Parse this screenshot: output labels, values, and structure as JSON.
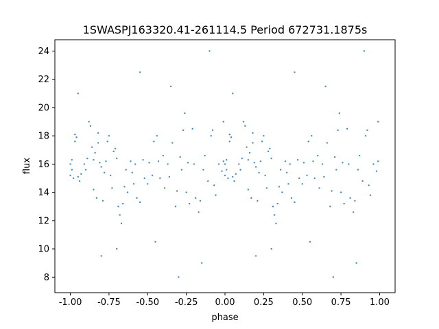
{
  "chart_data": {
    "type": "scatter",
    "title": "1SWASPJ163320.41-261114.5 Period 672731.1875s",
    "xlabel": "phase",
    "ylabel": "flux",
    "xlim": [
      -1.1,
      1.1
    ],
    "ylim": [
      6.9,
      24.8
    ],
    "xticks": [
      "-1.00",
      "-0.75",
      "-0.50",
      "-0.25",
      "0.00",
      "0.25",
      "0.50",
      "0.75",
      "1.00"
    ],
    "xtick_values": [
      -1,
      -0.75,
      -0.5,
      -0.25,
      0,
      0.25,
      0.5,
      0.75,
      1
    ],
    "yticks": [
      "8",
      "10",
      "12",
      "14",
      "16",
      "18",
      "20",
      "22",
      "24"
    ],
    "ytick_values": [
      8,
      10,
      12,
      14,
      16,
      18,
      20,
      22,
      24
    ],
    "grid": false,
    "marker_color": "#1f77b4",
    "points": [
      [
        0.0,
        15.2
      ],
      [
        0.0,
        16.0
      ],
      [
        0.01,
        15.6
      ],
      [
        0.01,
        16.3
      ],
      [
        0.02,
        15.0
      ],
      [
        0.03,
        17.6
      ],
      [
        0.03,
        18.1
      ],
      [
        0.04,
        17.9
      ],
      [
        0.05,
        15.1
      ],
      [
        0.06,
        14.8
      ],
      [
        0.07,
        15.3
      ],
      [
        0.09,
        16.0
      ],
      [
        0.1,
        15.6
      ],
      [
        0.11,
        16.4
      ],
      [
        0.12,
        19.0
      ],
      [
        0.13,
        18.7
      ],
      [
        0.14,
        17.2
      ],
      [
        0.15,
        16.3
      ],
      [
        0.15,
        14.2
      ],
      [
        0.16,
        16.8
      ],
      [
        0.17,
        13.6
      ],
      [
        0.18,
        18.2
      ],
      [
        0.18,
        17.5
      ],
      [
        0.19,
        16.1
      ],
      [
        0.2,
        15.8
      ],
      [
        0.21,
        13.4
      ],
      [
        0.22,
        15.4
      ],
      [
        0.23,
        16.2
      ],
      [
        0.24,
        17.6
      ],
      [
        0.25,
        18.0
      ],
      [
        0.26,
        15.2
      ],
      [
        0.27,
        14.3
      ],
      [
        0.28,
        16.9
      ],
      [
        0.29,
        17.1
      ],
      [
        0.3,
        16.4
      ],
      [
        0.31,
        13.0
      ],
      [
        0.32,
        12.4
      ],
      [
        0.33,
        11.8
      ],
      [
        0.34,
        13.2
      ],
      [
        0.35,
        14.4
      ],
      [
        0.36,
        15.6
      ],
      [
        0.37,
        14.0
      ],
      [
        0.39,
        16.2
      ],
      [
        0.4,
        15.4
      ],
      [
        0.41,
        14.6
      ],
      [
        0.42,
        16.0
      ],
      [
        0.43,
        13.6
      ],
      [
        0.45,
        13.3
      ],
      [
        0.47,
        16.3
      ],
      [
        0.48,
        15.0
      ],
      [
        0.5,
        14.6
      ],
      [
        0.51,
        16.1
      ],
      [
        0.53,
        15.2
      ],
      [
        0.54,
        17.6
      ],
      [
        0.56,
        18.0
      ],
      [
        0.57,
        16.2
      ],
      [
        0.58,
        15.0
      ],
      [
        0.6,
        16.6
      ],
      [
        0.61,
        14.3
      ],
      [
        0.63,
        16.0
      ],
      [
        0.64,
        15.1
      ],
      [
        0.66,
        17.5
      ],
      [
        0.68,
        13.0
      ],
      [
        0.69,
        14.1
      ],
      [
        0.71,
        16.5
      ],
      [
        0.72,
        15.6
      ],
      [
        0.73,
        18.4
      ],
      [
        0.74,
        19.6
      ],
      [
        0.75,
        14.0
      ],
      [
        0.76,
        16.1
      ],
      [
        0.77,
        13.2
      ],
      [
        0.79,
        18.5
      ],
      [
        0.8,
        16.0
      ],
      [
        0.81,
        13.6
      ],
      [
        0.83,
        12.6
      ],
      [
        0.84,
        13.4
      ],
      [
        0.86,
        15.6
      ],
      [
        0.87,
        16.6
      ],
      [
        0.89,
        14.8
      ],
      [
        0.91,
        18.0
      ],
      [
        0.92,
        18.4
      ],
      [
        0.93,
        14.5
      ],
      [
        0.94,
        13.8
      ],
      [
        0.96,
        16.0
      ],
      [
        0.98,
        15.5
      ],
      [
        0.99,
        19.0
      ],
      [
        0.99,
        16.2
      ],
      [
        0.05,
        21.0
      ],
      [
        0.2,
        9.5
      ],
      [
        0.45,
        22.5
      ],
      [
        0.55,
        10.5
      ],
      [
        0.7,
        8.0
      ],
      [
        0.9,
        24.0
      ],
      [
        0.3,
        10.0
      ],
      [
        0.65,
        21.5
      ],
      [
        0.85,
        9.0
      ],
      [
        -1.0,
        15.2
      ],
      [
        -1.0,
        16.0
      ],
      [
        -0.99,
        15.6
      ],
      [
        -0.99,
        16.3
      ],
      [
        -0.98,
        15.0
      ],
      [
        -0.97,
        17.6
      ],
      [
        -0.97,
        18.1
      ],
      [
        -0.96,
        17.9
      ],
      [
        -0.95,
        15.1
      ],
      [
        -0.94,
        14.8
      ],
      [
        -0.93,
        15.3
      ],
      [
        -0.91,
        16.0
      ],
      [
        -0.9,
        15.6
      ],
      [
        -0.89,
        16.4
      ],
      [
        -0.88,
        19.0
      ],
      [
        -0.87,
        18.7
      ],
      [
        -0.86,
        17.2
      ],
      [
        -0.85,
        16.3
      ],
      [
        -0.85,
        14.2
      ],
      [
        -0.84,
        16.8
      ],
      [
        -0.83,
        13.6
      ],
      [
        -0.82,
        18.2
      ],
      [
        -0.82,
        17.5
      ],
      [
        -0.81,
        16.1
      ],
      [
        -0.8,
        15.8
      ],
      [
        -0.79,
        13.4
      ],
      [
        -0.78,
        15.4
      ],
      [
        -0.77,
        16.2
      ],
      [
        -0.76,
        17.6
      ],
      [
        -0.75,
        18.0
      ],
      [
        -0.74,
        15.2
      ],
      [
        -0.73,
        14.3
      ],
      [
        -0.72,
        16.9
      ],
      [
        -0.71,
        17.1
      ],
      [
        -0.7,
        16.4
      ],
      [
        -0.69,
        13.0
      ],
      [
        -0.68,
        12.4
      ],
      [
        -0.67,
        11.8
      ],
      [
        -0.66,
        13.2
      ],
      [
        -0.65,
        14.4
      ],
      [
        -0.64,
        15.6
      ],
      [
        -0.63,
        14.0
      ],
      [
        -0.61,
        16.2
      ],
      [
        -0.6,
        15.4
      ],
      [
        -0.59,
        14.6
      ],
      [
        -0.58,
        16.0
      ],
      [
        -0.57,
        13.6
      ],
      [
        -0.55,
        13.3
      ],
      [
        -0.53,
        16.3
      ],
      [
        -0.52,
        15.0
      ],
      [
        -0.5,
        14.6
      ],
      [
        -0.49,
        16.1
      ],
      [
        -0.47,
        15.2
      ],
      [
        -0.46,
        17.6
      ],
      [
        -0.44,
        18.0
      ],
      [
        -0.43,
        16.2
      ],
      [
        -0.42,
        15.0
      ],
      [
        -0.4,
        16.6
      ],
      [
        -0.39,
        14.3
      ],
      [
        -0.37,
        16.0
      ],
      [
        -0.36,
        15.1
      ],
      [
        -0.34,
        17.5
      ],
      [
        -0.32,
        13.0
      ],
      [
        -0.31,
        14.1
      ],
      [
        -0.29,
        16.5
      ],
      [
        -0.28,
        15.6
      ],
      [
        -0.27,
        18.4
      ],
      [
        -0.26,
        19.6
      ],
      [
        -0.25,
        14.0
      ],
      [
        -0.24,
        16.1
      ],
      [
        -0.23,
        13.2
      ],
      [
        -0.21,
        18.5
      ],
      [
        -0.2,
        16.0
      ],
      [
        -0.19,
        13.6
      ],
      [
        -0.17,
        12.6
      ],
      [
        -0.16,
        13.4
      ],
      [
        -0.14,
        15.6
      ],
      [
        -0.13,
        16.6
      ],
      [
        -0.11,
        14.8
      ],
      [
        -0.09,
        18.0
      ],
      [
        -0.08,
        18.4
      ],
      [
        -0.07,
        14.5
      ],
      [
        -0.06,
        13.8
      ],
      [
        -0.04,
        16.0
      ],
      [
        -0.02,
        15.5
      ],
      [
        -0.01,
        19.0
      ],
      [
        -0.01,
        16.2
      ],
      [
        -0.95,
        21.0
      ],
      [
        -0.8,
        9.5
      ],
      [
        -0.55,
        22.5
      ],
      [
        -0.45,
        10.5
      ],
      [
        -0.3,
        8.0
      ],
      [
        -0.1,
        24.0
      ],
      [
        -0.7,
        10.0
      ],
      [
        -0.35,
        21.5
      ],
      [
        -0.15,
        9.0
      ]
    ]
  }
}
